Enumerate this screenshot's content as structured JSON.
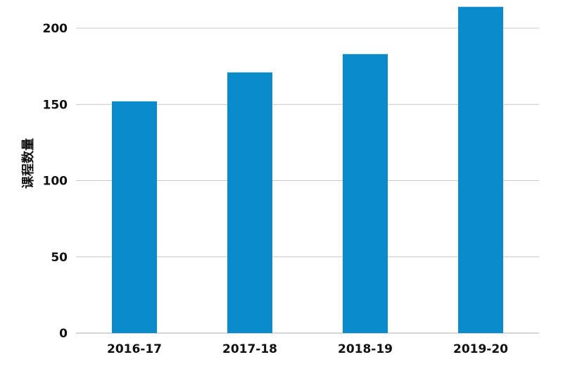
{
  "chart_data": {
    "type": "bar",
    "title": "",
    "xlabel": "",
    "ylabel": "课程数量",
    "categories": [
      "2016-17",
      "2017-18",
      "2018-19",
      "2019-20"
    ],
    "values": [
      152,
      171,
      183,
      214
    ],
    "ylim": [
      0,
      200
    ],
    "yticks": [
      0,
      50,
      100,
      150,
      200
    ],
    "grid": true,
    "legend": "none",
    "bar_color": "#0A8BCB",
    "grid_color": "#c8c8c8"
  }
}
